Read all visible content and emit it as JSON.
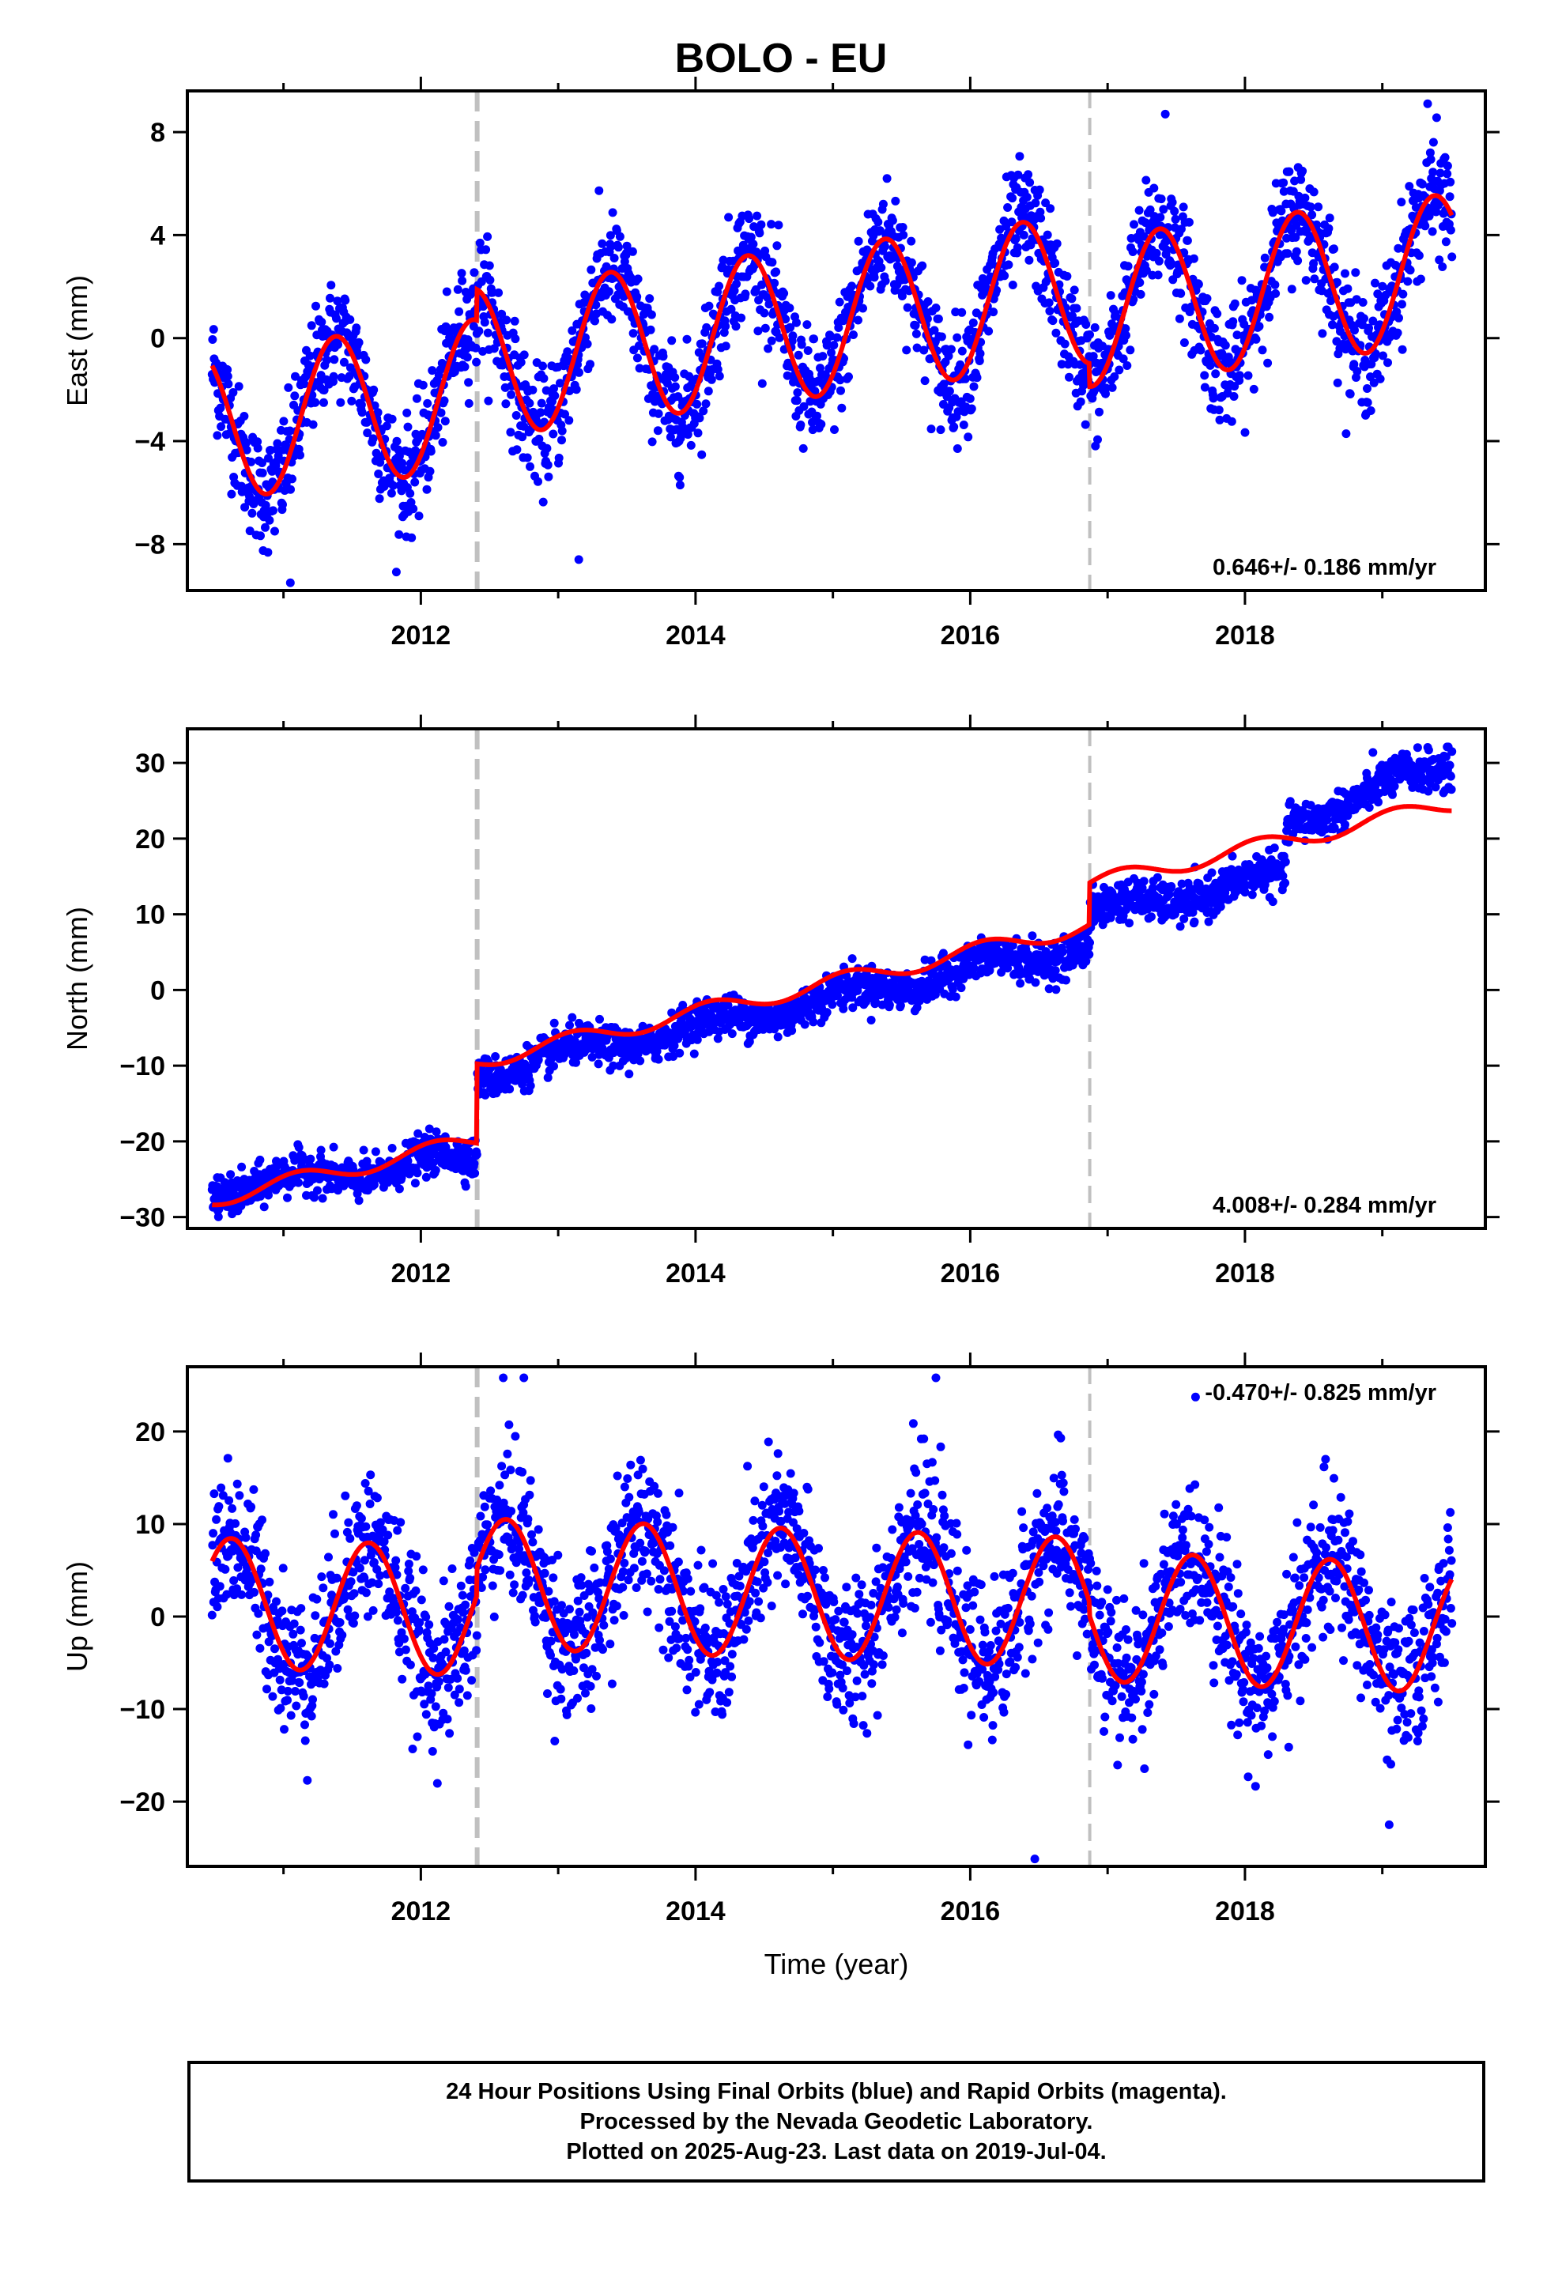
{
  "title": "BOLO - EU",
  "footer": {
    "line1": "24 Hour Positions Using Final Orbits (blue) and Rapid Orbits (magenta).",
    "line2": "Processed by the Nevada Geodetic Laboratory.",
    "line3": "Plotted on 2025-Aug-23. Last data on 2019-Jul-04."
  },
  "colors": {
    "points": "#0000ff",
    "model": "#ff0000",
    "event_line": "#c0c0c0"
  },
  "chart_data": [
    {
      "type": "scatter",
      "component": "East",
      "ylabel": "East (mm)",
      "xlabel": "",
      "xlim": [
        2010.3,
        2019.75
      ],
      "ylim": [
        -9.8,
        9.6
      ],
      "xticks": [
        2012,
        2014,
        2016,
        2018
      ],
      "yticks": [
        -8,
        -4,
        0,
        4,
        8
      ],
      "ytick_labels": [
        "−8",
        "−4",
        "0",
        "4",
        "8"
      ],
      "rate_label": "0.646+/- 0.186 mm/yr",
      "rate_position": "bottom-right",
      "data_start": 2010.48,
      "data_end": 2019.51,
      "event_lines": [
        2012.41,
        2016.87
      ],
      "event_dash": [
        "thick",
        "thin"
      ],
      "model_trend": {
        "intercept_at_2010_5": -3.4,
        "rate_mm_per_yr": 0.646
      },
      "model_seasonal": {
        "amplitude": 2.9,
        "peak_fraction_of_year": 0.38
      },
      "model_offsets": [
        {
          "year": 2012.41,
          "jump": 1.2
        },
        {
          "year": 2016.87,
          "jump": -0.9
        }
      ],
      "scatter_noise_sd": 1.1,
      "outliers": [
        {
          "x": 2011.05,
          "y": -9.5
        },
        {
          "x": 2013.15,
          "y": -8.6
        },
        {
          "x": 2017.42,
          "y": 8.7
        },
        {
          "x": 2019.33,
          "y": 9.1
        }
      ]
    },
    {
      "type": "scatter",
      "component": "North",
      "ylabel": "North (mm)",
      "xlabel": "",
      "xlim": [
        2010.3,
        2019.75
      ],
      "ylim": [
        -31.5,
        34.5
      ],
      "xticks": [
        2012,
        2014,
        2016,
        2018
      ],
      "yticks": [
        -30,
        -20,
        -10,
        0,
        10,
        20,
        30
      ],
      "ytick_labels": [
        "−30",
        "−20",
        "−10",
        "0",
        "10",
        "20",
        "30"
      ],
      "rate_label": "4.008+/- 0.284 mm/yr",
      "rate_position": "bottom-right",
      "data_start": 2010.48,
      "data_end": 2019.51,
      "event_lines": [
        2012.41,
        2016.87
      ],
      "event_dash": [
        "thick",
        "thin"
      ],
      "model_trend": {
        "intercept_at_2010_5": -27.5,
        "rate_mm_per_yr": 4.008
      },
      "model_seasonal": {
        "amplitude": 1.1,
        "peak_fraction_of_year": 0.1
      },
      "model_offsets": [
        {
          "year": 2012.41,
          "jump": 10.5
        },
        {
          "year": 2016.87,
          "jump": 5.5
        }
      ],
      "scatter_noise_sd": 1.3,
      "data_segments": [
        {
          "from": 2010.48,
          "to": 2012.41,
          "start_y": -26.5,
          "end_y": -22.0
        },
        {
          "from": 2012.41,
          "to": 2016.87,
          "start_y": -11.0,
          "end_y": 6.0
        },
        {
          "from": 2016.87,
          "to": 2018.3,
          "start_y": 10.0,
          "end_y": 15.0
        },
        {
          "from": 2018.3,
          "to": 2019.51,
          "start_y": 22.0,
          "end_y": 30.0
        }
      ]
    },
    {
      "type": "scatter",
      "component": "Up",
      "ylabel": "Up (mm)",
      "xlabel": "Time (year)",
      "xlim": [
        2010.3,
        2019.75
      ],
      "ylim": [
        -27,
        27
      ],
      "xticks": [
        2012,
        2014,
        2016,
        2018
      ],
      "yticks": [
        -20,
        -10,
        0,
        10,
        20
      ],
      "ytick_labels": [
        "−20",
        "−10",
        "0",
        "10",
        "20"
      ],
      "rate_label": "-0.470+/- 0.825 mm/yr",
      "rate_position": "top-right",
      "data_start": 2010.48,
      "data_end": 2019.51,
      "event_lines": [
        2012.41,
        2016.87
      ],
      "event_dash": [
        "thick",
        "thin"
      ],
      "model_trend": {
        "intercept_at_2010_5": 1.5,
        "rate_mm_per_yr": -0.47
      },
      "model_seasonal": {
        "amplitude": 7.0,
        "peak_fraction_of_year": 0.62
      },
      "model_offsets": [
        {
          "year": 2012.41,
          "jump": 3.0
        },
        {
          "year": 2016.87,
          "jump": -1.5
        }
      ],
      "scatter_noise_sd": 4.0,
      "outliers": [
        {
          "x": 2012.6,
          "y": 25.8
        },
        {
          "x": 2012.75,
          "y": 25.8
        },
        {
          "x": 2015.75,
          "y": 25.8
        },
        {
          "x": 2016.47,
          "y": -26.2
        },
        {
          "x": 2019.05,
          "y": -22.5
        }
      ]
    }
  ]
}
